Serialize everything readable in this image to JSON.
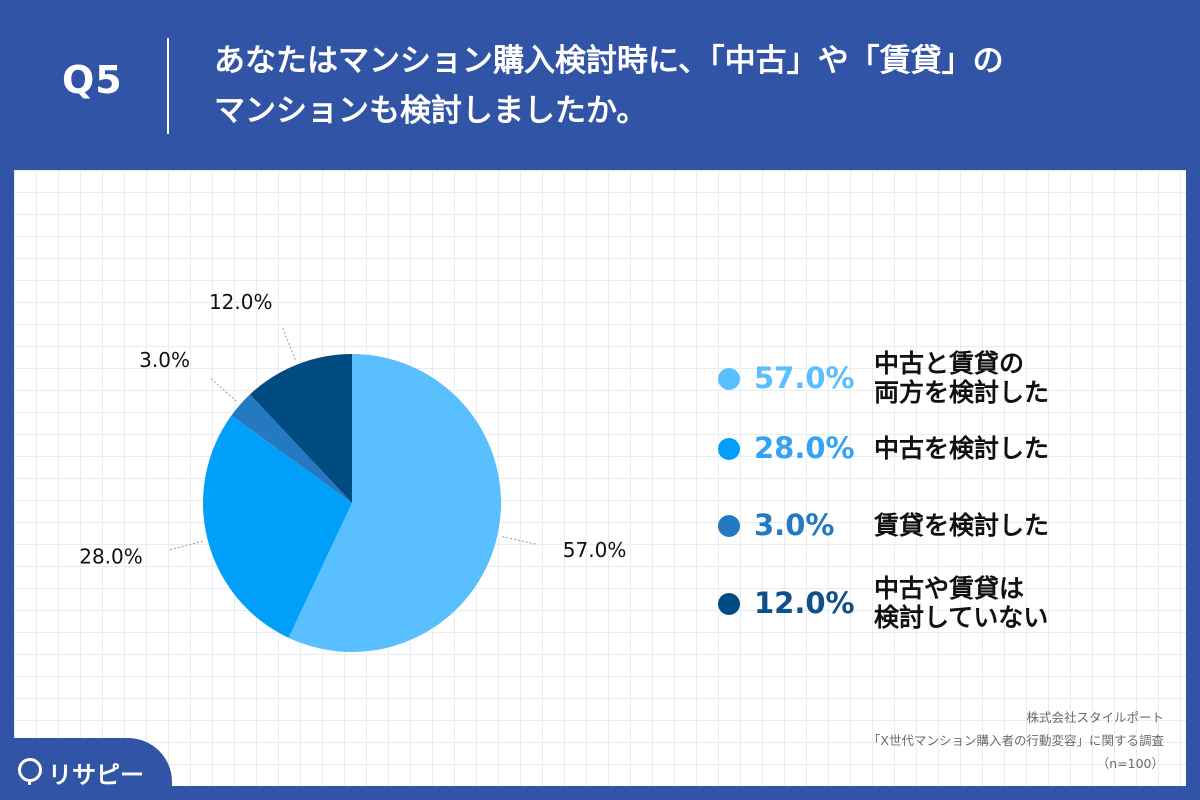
{
  "question": {
    "number": "Q5",
    "title_lines": [
      "あなたはマンション購入検討時に、「中古」や「賃貸」の",
      "マンションも検討しましたか。"
    ]
  },
  "chart_data": {
    "type": "pie",
    "start": "top",
    "direction": "clockwise",
    "slices": [
      {
        "value": 57.0,
        "value_label": "57.0%",
        "label_lines": [
          "中古と賃貸の",
          "両方を検討した"
        ],
        "color": "#59bfff"
      },
      {
        "value": 28.0,
        "value_label": "28.0%",
        "label_lines": [
          "中古を検討した"
        ],
        "color": "#00a0fa"
      },
      {
        "value": 3.0,
        "value_label": "3.0%",
        "label_lines": [
          "賃貸を検討した"
        ],
        "color": "#2479c0"
      },
      {
        "value": 12.0,
        "value_label": "12.0%",
        "label_lines": [
          "中古や賃貸は",
          "検討していない"
        ],
        "color": "#004b81"
      }
    ],
    "legend_value_colors": [
      "#59bfff",
      "#35a3f5",
      "#2479c0",
      "#0f4f8a"
    ],
    "legend_position": "right"
  },
  "source": {
    "lines": [
      "株式会社スタイルポート",
      "「X世代マンション購入者の行動変容」に関する調査",
      "（n=100）"
    ]
  },
  "logo": {
    "text": "リサピー"
  }
}
